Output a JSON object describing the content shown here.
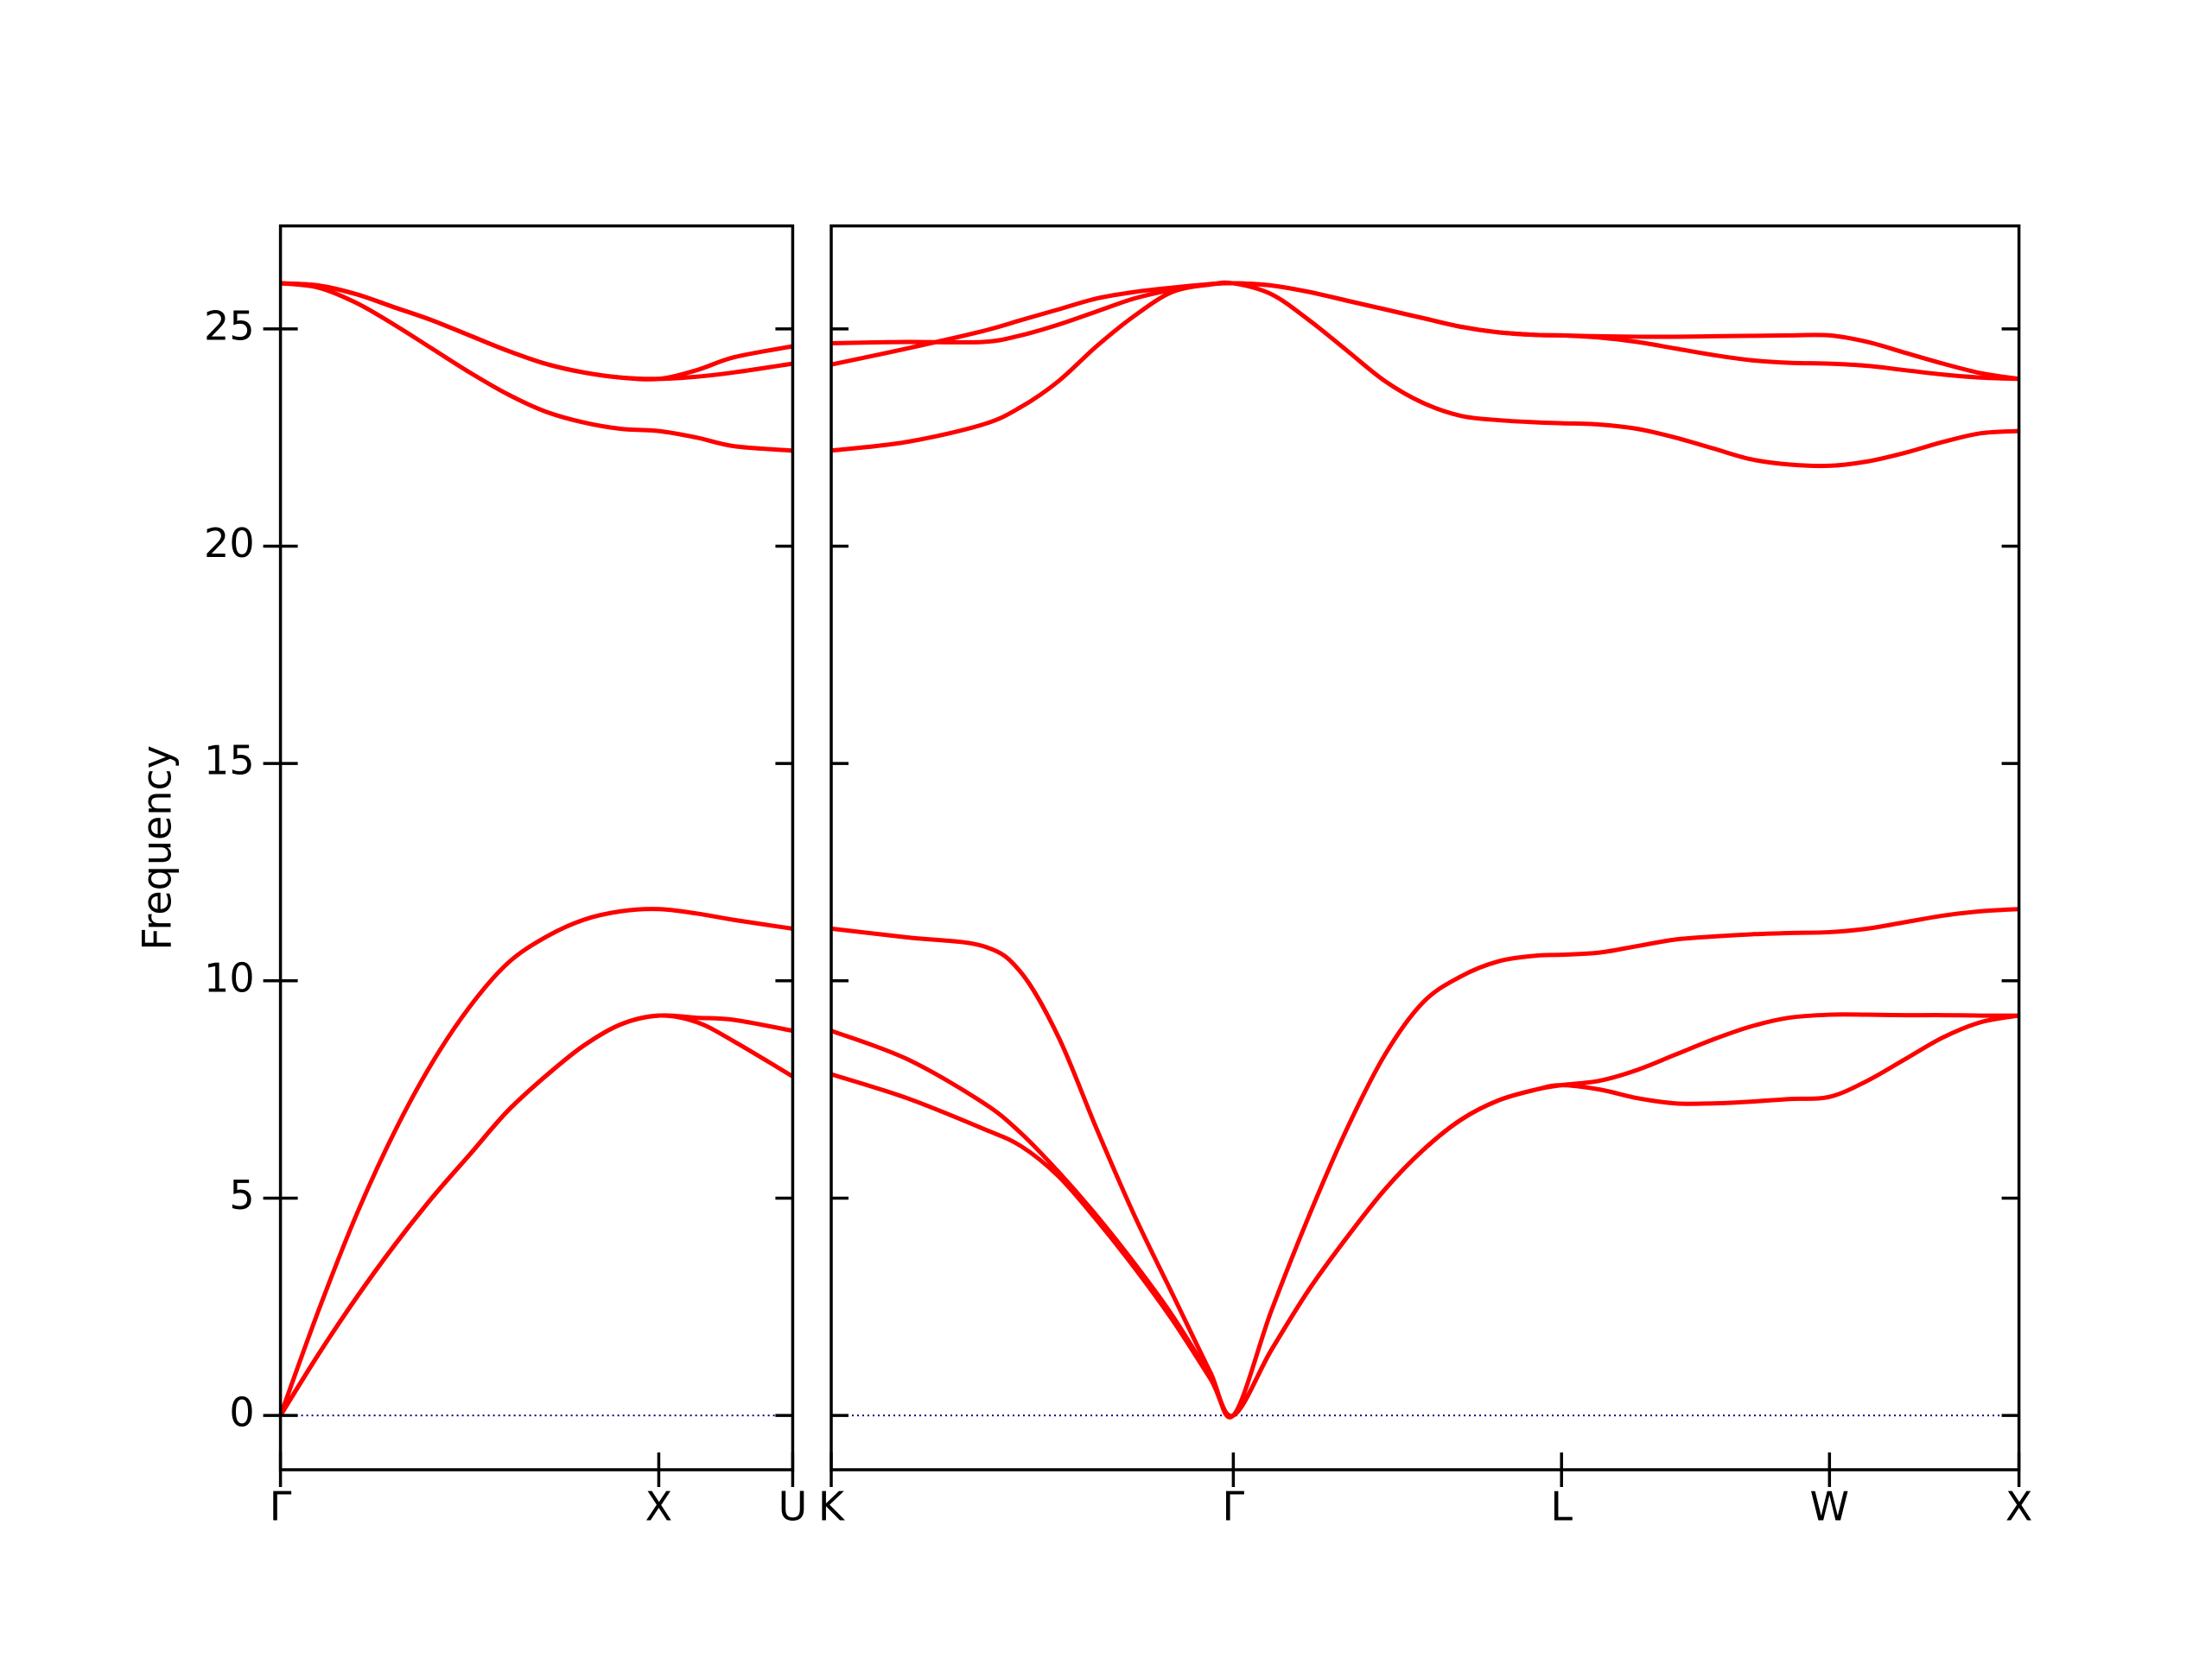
{
  "chart_data": [
    {
      "type": "line",
      "ylabel": "Frequency",
      "xlim": [
        0,
        1.354
      ],
      "xticks": [
        {
          "value": 0,
          "label": "Γ"
        },
        {
          "value": 1,
          "label": "X"
        },
        {
          "value": 1.354,
          "label": "U"
        }
      ],
      "ylim": [
        -1.25,
        27.37
      ],
      "yticks": [
        0,
        5,
        10,
        15,
        20,
        25
      ],
      "ytick_labels": true,
      "zero_line": {
        "value": 0,
        "color": "#00008b",
        "style": "dotted"
      },
      "x": [
        0,
        0.1,
        0.2,
        0.3,
        0.4,
        0.5,
        0.6,
        0.7,
        0.8,
        0.9,
        1.0,
        1.1,
        1.2,
        1.354
      ],
      "series": [
        {
          "color": "#ff0000",
          "values": [
            0,
            1.4,
            2.7,
            3.9,
            5.0,
            6.0,
            7.0,
            7.8,
            8.5,
            9.0,
            9.2,
            9.05,
            8.6,
            7.8
          ]
        },
        {
          "color": "#ff0000",
          "values": [
            0,
            1.4,
            2.7,
            3.9,
            5.0,
            6.0,
            7.0,
            7.8,
            8.5,
            9.0,
            9.2,
            9.15,
            9.1,
            8.85
          ]
        },
        {
          "color": "#ff0000",
          "values": [
            0,
            2.4,
            4.6,
            6.5,
            8.1,
            9.4,
            10.4,
            11.0,
            11.4,
            11.6,
            11.65,
            11.55,
            11.4,
            11.2
          ]
        },
        {
          "color": "#ff0000",
          "values": [
            26.05,
            25.95,
            25.6,
            25.1,
            24.55,
            24.0,
            23.5,
            23.1,
            22.85,
            22.7,
            22.65,
            22.5,
            22.3,
            22.2
          ]
        },
        {
          "color": "#ff0000",
          "values": [
            26.05,
            26.0,
            25.8,
            25.5,
            25.2,
            24.85,
            24.5,
            24.2,
            24.0,
            23.88,
            23.85,
            23.9,
            24.0,
            24.2
          ]
        },
        {
          "color": "#ff0000",
          "values": [
            26.05,
            26.0,
            25.8,
            25.5,
            25.2,
            24.85,
            24.5,
            24.2,
            24.0,
            23.88,
            23.85,
            24.05,
            24.35,
            24.6
          ]
        }
      ]
    },
    {
      "type": "line",
      "xlim": [
        0,
        3.134
      ],
      "xticks": [
        {
          "value": 0,
          "label": "K"
        },
        {
          "value": 1.061,
          "label": "Γ"
        },
        {
          "value": 1.927,
          "label": "L"
        },
        {
          "value": 2.634,
          "label": "W"
        },
        {
          "value": 3.134,
          "label": "X"
        }
      ],
      "ylim": [
        -1.25,
        27.37
      ],
      "yticks": [
        0,
        5,
        10,
        15,
        20,
        25
      ],
      "ytick_labels": false,
      "zero_line": {
        "value": 0,
        "color": "#00008b",
        "style": "dotted"
      },
      "x": [
        0,
        0.2,
        0.4,
        0.5,
        0.6,
        0.7,
        0.8,
        0.9,
        1.0,
        1.061,
        1.161,
        1.261,
        1.361,
        1.461,
        1.561,
        1.661,
        1.761,
        1.861,
        1.927,
        2.027,
        2.127,
        2.227,
        2.327,
        2.427,
        2.527,
        2.634,
        2.734,
        2.834,
        2.934,
        3.034,
        3.134
      ],
      "series": [
        {
          "color": "#ff0000",
          "values": [
            7.85,
            7.3,
            6.6,
            6.2,
            5.5,
            4.5,
            3.4,
            2.2,
            0.85,
            0,
            1.5,
            2.9,
            4.1,
            5.2,
            6.1,
            6.8,
            7.25,
            7.5,
            7.6,
            7.5,
            7.3,
            7.18,
            7.18,
            7.22,
            7.28,
            7.33,
            7.7,
            8.2,
            8.7,
            9.05,
            9.2
          ]
        },
        {
          "color": "#ff0000",
          "values": [
            8.85,
            8.2,
            7.2,
            6.5,
            5.6,
            4.6,
            3.5,
            2.3,
            0.9,
            0,
            1.5,
            2.9,
            4.1,
            5.2,
            6.1,
            6.8,
            7.25,
            7.5,
            7.6,
            7.7,
            7.95,
            8.3,
            8.65,
            8.95,
            9.15,
            9.22,
            9.22,
            9.21,
            9.21,
            9.2,
            9.2
          ]
        },
        {
          "color": "#ff0000",
          "values": [
            11.2,
            11.0,
            10.8,
            10.2,
            8.7,
            6.6,
            4.6,
            2.8,
            1.0,
            0,
            2.4,
            4.6,
            6.6,
            8.3,
            9.5,
            10.1,
            10.45,
            10.58,
            10.6,
            10.65,
            10.8,
            10.95,
            11.02,
            11.07,
            11.1,
            11.12,
            11.2,
            11.35,
            11.5,
            11.6,
            11.65
          ]
        },
        {
          "color": "#ff0000",
          "values": [
            22.2,
            22.4,
            22.8,
            23.2,
            23.8,
            24.6,
            25.3,
            25.85,
            26.02,
            26.05,
            25.8,
            25.2,
            24.5,
            23.8,
            23.3,
            23.0,
            22.9,
            22.85,
            22.83,
            22.8,
            22.7,
            22.5,
            22.25,
            22.0,
            21.88,
            21.85,
            21.95,
            22.15,
            22.4,
            22.6,
            22.65
          ]
        },
        {
          "color": "#ff0000",
          "values": [
            24.18,
            24.55,
            24.95,
            25.2,
            25.45,
            25.7,
            25.85,
            25.95,
            26.03,
            26.05,
            26.0,
            25.85,
            25.65,
            25.45,
            25.25,
            25.05,
            24.92,
            24.86,
            24.85,
            24.8,
            24.7,
            24.55,
            24.4,
            24.28,
            24.22,
            24.2,
            24.15,
            24.05,
            23.95,
            23.88,
            23.85
          ]
        },
        {
          "color": "#ff0000",
          "values": [
            24.67,
            24.7,
            24.7,
            24.85,
            25.1,
            25.4,
            25.7,
            25.9,
            26.03,
            26.05,
            26.0,
            25.85,
            25.65,
            25.45,
            25.25,
            25.05,
            24.92,
            24.86,
            24.85,
            24.83,
            24.82,
            24.82,
            24.83,
            24.84,
            24.85,
            24.85,
            24.7,
            24.45,
            24.2,
            23.98,
            23.85
          ]
        }
      ]
    }
  ]
}
